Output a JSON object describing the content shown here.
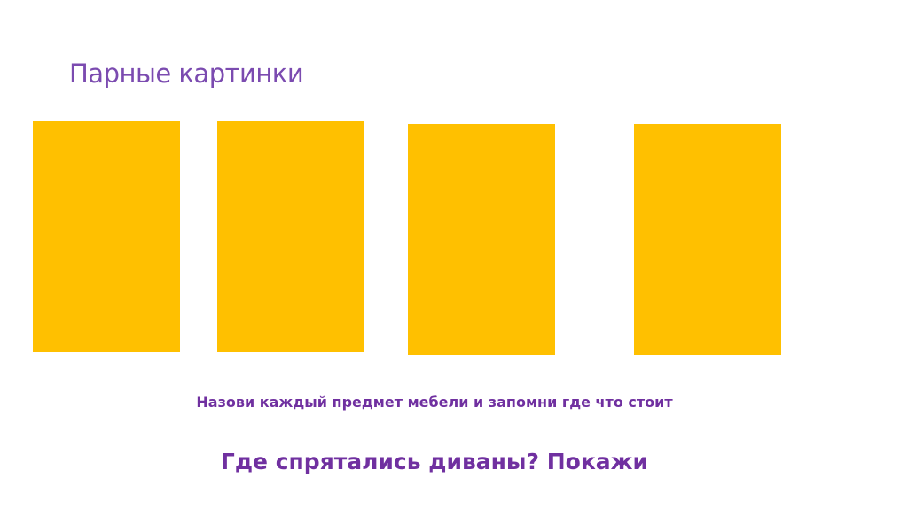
{
  "slide": {
    "title": "Парные картинки",
    "cards_color": "#FFC000",
    "cards": [
      {
        "id": 1
      },
      {
        "id": 2
      },
      {
        "id": 3
      },
      {
        "id": 4
      }
    ],
    "instruction": "Назови каждый предмет мебели и запомни где что стоит",
    "question": "Где спрятались диваны? Покажи"
  }
}
